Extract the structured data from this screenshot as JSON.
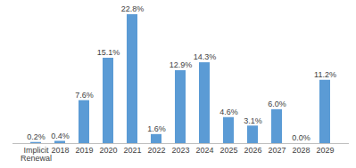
{
  "chart_data": {
    "type": "bar",
    "categories": [
      "Implicit Renewal",
      "2018",
      "2019",
      "2020",
      "2021",
      "2022",
      "2023",
      "2024",
      "2025",
      "2026",
      "2027",
      "2028",
      "2029"
    ],
    "values": [
      0.2,
      0.4,
      7.6,
      15.1,
      22.8,
      1.6,
      12.9,
      14.3,
      4.6,
      3.1,
      6.0,
      0.0,
      11.2
    ],
    "value_labels": [
      "0.2%",
      "0.4%",
      "7.6%",
      "15.1%",
      "22.8%",
      "1.6%",
      "12.9%",
      "14.3%",
      "4.6%",
      "3.1%",
      "6.0%",
      "0.0%",
      "11.2%"
    ],
    "color": "#5b9bd5",
    "data_labels": true,
    "tick_labels": "x",
    "grid": false
  }
}
